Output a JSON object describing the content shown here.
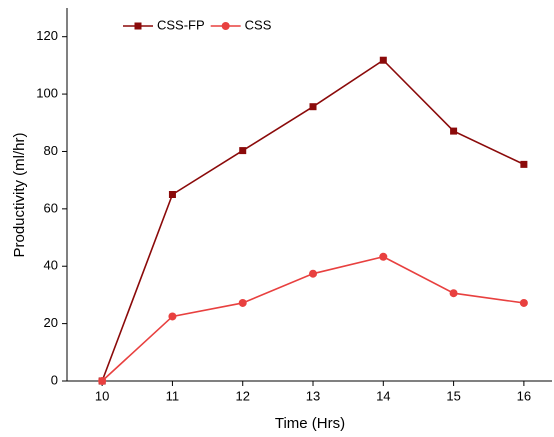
{
  "chart_data": {
    "type": "line",
    "x_label": "Time (Hrs)",
    "y_label": "Productivity (ml/hr)",
    "x": [
      10,
      11,
      12,
      13,
      14,
      15,
      16
    ],
    "series": [
      {
        "name": "CSS-FP",
        "color": "#8b0a0a",
        "marker": "square",
        "values": [
          0,
          65,
          80.3,
          95.6,
          111.8,
          87.1,
          75.5
        ]
      },
      {
        "name": "CSS",
        "color": "#e8403f",
        "marker": "circle",
        "values": [
          0,
          22.5,
          27.2,
          37.4,
          43.3,
          30.6,
          27.2
        ]
      }
    ],
    "xlim": [
      9.5,
      16.4
    ],
    "xticks": [
      10,
      11,
      12,
      13,
      14,
      15,
      16
    ],
    "ylim": [
      0,
      130
    ],
    "yticks": [
      0,
      20,
      40,
      60,
      80,
      100,
      120
    ],
    "legend": "top-left"
  }
}
